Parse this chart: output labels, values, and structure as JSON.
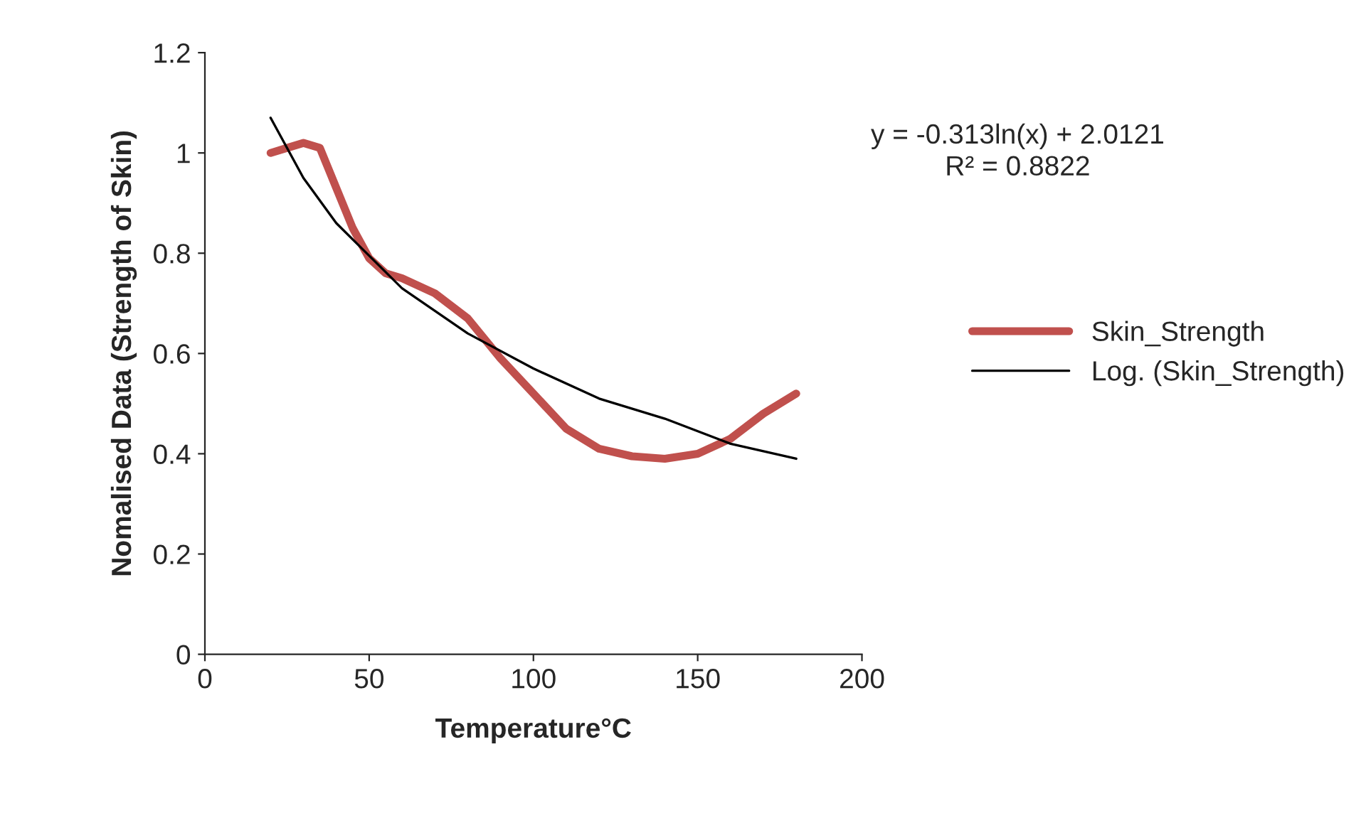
{
  "chart_data": {
    "type": "line",
    "xlabel": "Temperature°C",
    "ylabel": "Nomalised Data (Strength of Skin)",
    "xlim": [
      0,
      200
    ],
    "xticks": [
      0,
      50,
      100,
      150,
      200
    ],
    "ylim": [
      0,
      1.2
    ],
    "yticks": [
      0,
      0.2,
      0.4,
      0.6,
      0.8,
      1,
      1.2
    ],
    "grid": false,
    "legend": "right",
    "marker": "none",
    "annotations": [
      "y = -0.313ln(x) + 2.0121\nR² = 0.8822"
    ],
    "series": [
      {
        "name": "Skin_Strength",
        "color": "#c0504d",
        "x": [
          20,
          25,
          30,
          35,
          40,
          45,
          50,
          55,
          60,
          70,
          80,
          90,
          100,
          110,
          120,
          130,
          140,
          150,
          160,
          170,
          180
        ],
        "values": [
          1.0,
          1.01,
          1.02,
          1.01,
          0.93,
          0.85,
          0.79,
          0.76,
          0.75,
          0.72,
          0.67,
          0.59,
          0.52,
          0.45,
          0.41,
          0.395,
          0.39,
          0.4,
          0.43,
          0.48,
          0.52
        ]
      },
      {
        "name": "Log. (Skin_Strength)",
        "color": "#000000",
        "x": [
          20,
          30,
          40,
          60,
          80,
          100,
          120,
          140,
          160,
          180
        ],
        "values": [
          1.07,
          0.95,
          0.86,
          0.73,
          0.64,
          0.57,
          0.51,
          0.47,
          0.42,
          0.39
        ]
      }
    ]
  }
}
